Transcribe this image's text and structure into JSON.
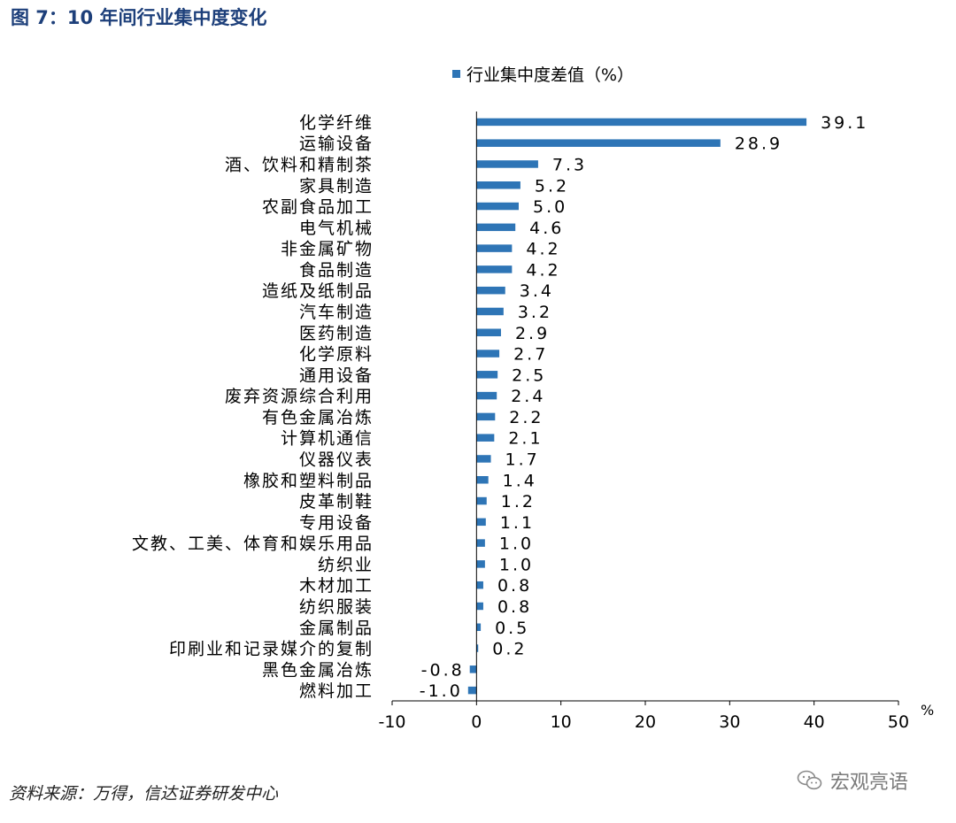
{
  "figure_title": "图 7：10 年间行业集中度变化",
  "source": "资料来源：万得，信达证券研发中心",
  "watermark": "宏观亮语",
  "colors": {
    "bar": "#2e75b6",
    "title": "#1d3f7a",
    "axis": "#000000"
  },
  "chart_data": {
    "type": "bar",
    "orientation": "horizontal",
    "categories": [
      "化学纤维",
      "运输设备",
      "酒、饮料和精制茶",
      "家具制造",
      "农副食品加工",
      "电气机械",
      "非金属矿物",
      "食品制造",
      "造纸及纸制品",
      "汽车制造",
      "医药制造",
      "化学原料",
      "通用设备",
      "废弃资源综合利用",
      "有色金属冶炼",
      "计算机通信",
      "仪器仪表",
      "橡胶和塑料制品",
      "皮革制鞋",
      "专用设备",
      "文教、工美、体育和娱乐用品",
      "纺织业",
      "木材加工",
      "纺织服装",
      "金属制品",
      "印刷业和记录媒介的复制",
      "黑色金属冶炼",
      "燃料加工"
    ],
    "series": [
      {
        "name": "行业集中度差值（%）",
        "values": [
          39.1,
          28.9,
          7.3,
          5.2,
          5.0,
          4.6,
          4.2,
          4.2,
          3.4,
          3.2,
          2.9,
          2.7,
          2.5,
          2.4,
          2.2,
          2.1,
          1.7,
          1.4,
          1.2,
          1.1,
          1.0,
          1.0,
          0.8,
          0.8,
          0.5,
          0.2,
          -0.8,
          -1.0
        ],
        "labels": [
          "39.1",
          "28.9",
          "7.3",
          "5.2",
          "5.0",
          "4.6",
          "4.2",
          "4.2",
          "3.4",
          "3.2",
          "2.9",
          "2.7",
          "2.5",
          "2.4",
          "2.2",
          "2.1",
          "1.7",
          "1.4",
          "1.2",
          "1.1",
          "1.0",
          "1.0",
          "0.8",
          "0.8",
          "0.5",
          "0.2",
          "-0.8",
          "-1.0"
        ]
      }
    ],
    "xlim": [
      -10,
      50
    ],
    "xticks": [
      -10,
      0,
      10,
      20,
      30,
      40,
      50
    ],
    "xtick_labels": [
      "-10",
      "0",
      "10",
      "20",
      "30",
      "40",
      "50"
    ],
    "xunit": "%",
    "legend_position": "top",
    "grid": false
  }
}
